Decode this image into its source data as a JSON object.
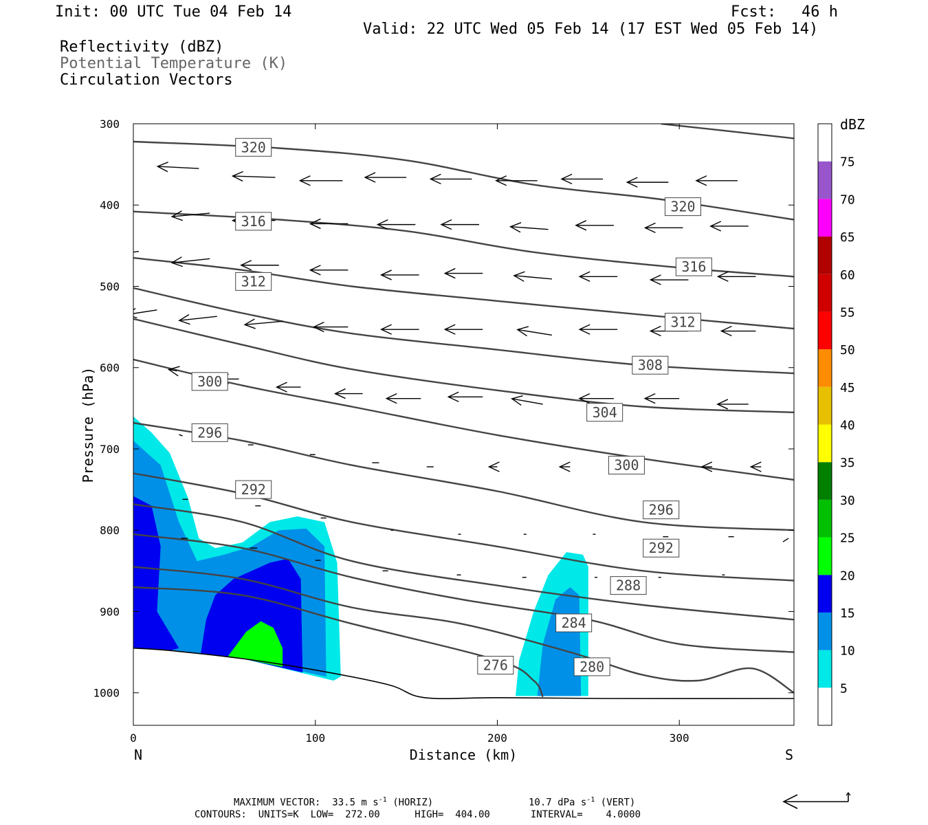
{
  "header": {
    "init": "Init: 00 UTC Tue 04 Feb 14",
    "fcst_label": "Fcst:",
    "fcst_value": "46 h",
    "valid": "Valid: 22 UTC Wed 05 Feb 14 (17 EST Wed 05 Feb 14)",
    "field1": "Reflectivity (dBZ)",
    "field2": "Potential Temperature (K)",
    "field3": "Circulation Vectors"
  },
  "footer": {
    "line1_a": "MAXIMUM VECTOR:  33.5 m s",
    "line1_sup1": "-1",
    "line1_b": " (HORIZ)",
    "line1_c": "10.7 dPa s",
    "line1_sup2": "-1",
    "line1_d": " (VERT)",
    "line2": "CONTOURS:  UNITS=K  LOW=  272.00      HIGH=  404.00       INTERVAL=    4.0000"
  },
  "chart_data": {
    "type": "contour",
    "xlabel": "Distance (km)",
    "ylabel": "Pressure (hPa)",
    "xlim": [
      0,
      363
    ],
    "ylim": [
      1040,
      300
    ],
    "x_ticks": [
      0,
      100,
      200,
      300
    ],
    "y_ticks": [
      300,
      400,
      500,
      600,
      700,
      800,
      900,
      1000
    ],
    "x_end_labels": {
      "left": "N",
      "right": "S"
    },
    "colorbar": {
      "title": "dBZ",
      "levels": [
        5,
        10,
        15,
        20,
        25,
        30,
        35,
        40,
        45,
        50,
        55,
        60,
        65,
        70,
        75
      ],
      "colors": [
        "#ffffff",
        "#00e8e8",
        "#0090e8",
        "#0000f0",
        "#00ff00",
        "#00c000",
        "#008000",
        "#ffff00",
        "#e8c000",
        "#ff8c00",
        "#ff0000",
        "#d00000",
        "#b00000",
        "#ff00ff",
        "#9955cc",
        "#ffffff"
      ]
    },
    "surface": [
      [
        0,
        945
      ],
      [
        20,
        948
      ],
      [
        60,
        958
      ],
      [
        100,
        972
      ],
      [
        140,
        990
      ],
      [
        160,
        1006
      ],
      [
        200,
        1006
      ],
      [
        260,
        1007
      ],
      [
        363,
        1007
      ]
    ],
    "reflectivity": [
      {
        "dbz": 5,
        "polygon": [
          [
            0,
            660
          ],
          [
            10,
            680
          ],
          [
            20,
            705
          ],
          [
            30,
            760
          ],
          [
            36,
            810
          ],
          [
            45,
            822
          ],
          [
            60,
            815
          ],
          [
            75,
            790
          ],
          [
            90,
            783
          ],
          [
            105,
            790
          ],
          [
            112,
            840
          ],
          [
            114,
            980
          ],
          [
            110,
            985
          ],
          [
            60,
            958
          ],
          [
            20,
            948
          ],
          [
            0,
            945
          ]
        ]
      },
      {
        "dbz": 10,
        "polygon": [
          [
            0,
            690
          ],
          [
            15,
            720
          ],
          [
            25,
            790
          ],
          [
            35,
            838
          ],
          [
            50,
            830
          ],
          [
            65,
            820
          ],
          [
            80,
            800
          ],
          [
            95,
            798
          ],
          [
            105,
            820
          ],
          [
            106,
            980
          ],
          [
            60,
            958
          ],
          [
            20,
            948
          ],
          [
            0,
            945
          ]
        ]
      },
      {
        "dbz": 15,
        "polygon": [
          [
            0,
            758
          ],
          [
            10,
            770
          ],
          [
            15,
            820
          ],
          [
            13,
            900
          ],
          [
            25,
            945
          ],
          [
            20,
            948
          ],
          [
            0,
            945
          ]
        ]
      },
      {
        "dbz": 15,
        "polygon": [
          [
            45,
            880
          ],
          [
            55,
            860
          ],
          [
            75,
            840
          ],
          [
            85,
            835
          ],
          [
            92,
            860
          ],
          [
            93,
            975
          ],
          [
            60,
            958
          ],
          [
            37,
            952
          ],
          [
            40,
            910
          ]
        ]
      },
      {
        "dbz": 20,
        "polygon": [
          [
            52,
            955
          ],
          [
            62,
            925
          ],
          [
            70,
            912
          ],
          [
            77,
            920
          ],
          [
            82,
            945
          ],
          [
            82,
            968
          ],
          [
            60,
            958
          ]
        ]
      },
      {
        "dbz": 5,
        "polygon": [
          [
            210,
            1004
          ],
          [
            212,
            960
          ],
          [
            220,
            900
          ],
          [
            228,
            855
          ],
          [
            238,
            827
          ],
          [
            247,
            830
          ],
          [
            250,
            845
          ],
          [
            250,
            1004
          ]
        ]
      },
      {
        "dbz": 10,
        "polygon": [
          [
            222,
            1004
          ],
          [
            225,
            940
          ],
          [
            232,
            885
          ],
          [
            240,
            870
          ],
          [
            245,
            880
          ],
          [
            246,
            1004
          ]
        ]
      }
    ],
    "theta_contours": [
      {
        "k": 320,
        "points": [
          [
            0,
            322
          ],
          [
            80,
            330
          ],
          [
            150,
            345
          ],
          [
            220,
            375
          ],
          [
            290,
            393
          ],
          [
            363,
            418
          ]
        ]
      },
      {
        "k": 320,
        "points": [
          [
            290,
            300
          ],
          [
            363,
            318
          ]
        ]
      },
      {
        "k": 316,
        "points": [
          [
            0,
            408
          ],
          [
            80,
            418
          ],
          [
            150,
            432
          ],
          [
            220,
            458
          ],
          [
            300,
            477
          ],
          [
            363,
            488
          ]
        ]
      },
      {
        "k": 312,
        "points": [
          [
            0,
            465
          ],
          [
            60,
            480
          ],
          [
            120,
            500
          ],
          [
            200,
            518
          ],
          [
            280,
            535
          ],
          [
            363,
            552
          ]
        ]
      },
      {
        "k": 308,
        "points": [
          [
            0,
            502
          ],
          [
            60,
            533
          ],
          [
            120,
            558
          ],
          [
            200,
            578
          ],
          [
            280,
            597
          ],
          [
            363,
            607
          ]
        ]
      },
      {
        "k": 304,
        "points": [
          [
            0,
            540
          ],
          [
            60,
            572
          ],
          [
            120,
            602
          ],
          [
            200,
            628
          ],
          [
            280,
            648
          ],
          [
            363,
            655
          ]
        ]
      },
      {
        "k": 300,
        "points": [
          [
            0,
            590
          ],
          [
            60,
            622
          ],
          [
            120,
            648
          ],
          [
            200,
            683
          ],
          [
            280,
            712
          ],
          [
            363,
            738
          ]
        ]
      },
      {
        "k": 296,
        "points": [
          [
            0,
            668
          ],
          [
            60,
            690
          ],
          [
            120,
            720
          ],
          [
            200,
            752
          ],
          [
            280,
            790
          ],
          [
            363,
            800
          ]
        ]
      },
      {
        "k": 292,
        "points": [
          [
            0,
            730
          ],
          [
            60,
            755
          ],
          [
            120,
            790
          ],
          [
            200,
            820
          ],
          [
            280,
            850
          ],
          [
            363,
            862
          ]
        ]
      },
      {
        "k": 288,
        "points": [
          [
            0,
            768
          ],
          [
            60,
            790
          ],
          [
            120,
            838
          ],
          [
            200,
            868
          ],
          [
            280,
            892
          ],
          [
            363,
            910
          ]
        ]
      },
      {
        "k": 284,
        "points": [
          [
            0,
            805
          ],
          [
            60,
            822
          ],
          [
            120,
            858
          ],
          [
            180,
            885
          ],
          [
            250,
            910
          ],
          [
            300,
            940
          ],
          [
            363,
            950
          ]
        ]
      },
      {
        "k": 280,
        "points": [
          [
            0,
            845
          ],
          [
            60,
            860
          ],
          [
            120,
            895
          ],
          [
            180,
            915
          ],
          [
            240,
            950
          ],
          [
            280,
            978
          ],
          [
            310,
            985
          ],
          [
            340,
            970
          ],
          [
            363,
            1000
          ]
        ]
      },
      {
        "k": 276,
        "points": [
          [
            0,
            870
          ],
          [
            60,
            880
          ],
          [
            120,
            915
          ],
          [
            200,
            960
          ],
          [
            220,
            985
          ],
          [
            225,
            1005
          ]
        ]
      }
    ],
    "contour_labels": [
      {
        "text": "320",
        "x": 66,
        "p": 329
      },
      {
        "text": "320",
        "x": 302,
        "p": 402
      },
      {
        "text": "316",
        "x": 66,
        "p": 420
      },
      {
        "text": "316",
        "x": 308,
        "p": 476
      },
      {
        "text": "312",
        "x": 66,
        "p": 494
      },
      {
        "text": "312",
        "x": 302,
        "p": 544
      },
      {
        "text": "308",
        "x": 284,
        "p": 597
      },
      {
        "text": "300",
        "x": 42,
        "p": 617
      },
      {
        "text": "304",
        "x": 259,
        "p": 655
      },
      {
        "text": "296",
        "x": 42,
        "p": 680
      },
      {
        "text": "300",
        "x": 271,
        "p": 720
      },
      {
        "text": "292",
        "x": 66,
        "p": 750
      },
      {
        "text": "296",
        "x": 290,
        "p": 775
      },
      {
        "text": "292",
        "x": 290,
        "p": 822
      },
      {
        "text": "288",
        "x": 272,
        "p": 868
      },
      {
        "text": "284",
        "x": 242,
        "p": 914
      },
      {
        "text": "276",
        "x": 199,
        "p": 966
      },
      {
        "text": "280",
        "x": 252,
        "p": 968
      }
    ],
    "vectors": [
      {
        "x": 0,
        "p": 348,
        "dx": -60,
        "dp": -2
      },
      {
        "x": 36,
        "p": 355,
        "dx": -60,
        "dp": -3
      },
      {
        "x": 78,
        "p": 366,
        "dx": -62,
        "dp": -2
      },
      {
        "x": 115,
        "p": 370,
        "dx": -62,
        "dp": 0
      },
      {
        "x": 150,
        "p": 366,
        "dx": -60,
        "dp": 0
      },
      {
        "x": 186,
        "p": 368,
        "dx": -60,
        "dp": 0
      },
      {
        "x": 222,
        "p": 370,
        "dx": -60,
        "dp": 0
      },
      {
        "x": 258,
        "p": 368,
        "dx": -60,
        "dp": 0
      },
      {
        "x": 294,
        "p": 372,
        "dx": -60,
        "dp": 0
      },
      {
        "x": 332,
        "p": 370,
        "dx": -60,
        "dp": 0
      },
      {
        "x": 0,
        "p": 400,
        "dx": -60,
        "dp": 7
      },
      {
        "x": 42,
        "p": 410,
        "dx": -55,
        "dp": 5
      },
      {
        "x": 78,
        "p": 419,
        "dx": -62,
        "dp": 0
      },
      {
        "x": 118,
        "p": 423,
        "dx": -55,
        "dp": 0
      },
      {
        "x": 155,
        "p": 424,
        "dx": -55,
        "dp": 0
      },
      {
        "x": 190,
        "p": 424,
        "dx": -55,
        "dp": 0
      },
      {
        "x": 228,
        "p": 430,
        "dx": -55,
        "dp": -4
      },
      {
        "x": 264,
        "p": 425,
        "dx": -55,
        "dp": 0
      },
      {
        "x": 302,
        "p": 428,
        "dx": -55,
        "dp": 0
      },
      {
        "x": 338,
        "p": 426,
        "dx": -55,
        "dp": 0
      },
      {
        "x": 3,
        "p": 457,
        "dx": -60,
        "dp": 8
      },
      {
        "x": 42,
        "p": 466,
        "dx": -55,
        "dp": 6
      },
      {
        "x": 80,
        "p": 474,
        "dx": -55,
        "dp": 0
      },
      {
        "x": 118,
        "p": 480,
        "dx": -55,
        "dp": 0
      },
      {
        "x": 157,
        "p": 486,
        "dx": -55,
        "dp": 0
      },
      {
        "x": 192,
        "p": 484,
        "dx": -55,
        "dp": 0
      },
      {
        "x": 230,
        "p": 491,
        "dx": -55,
        "dp": -5
      },
      {
        "x": 266,
        "p": 488,
        "dx": -55,
        "dp": 0
      },
      {
        "x": 305,
        "p": 492,
        "dx": -55,
        "dp": 0
      },
      {
        "x": 342,
        "p": 488,
        "dx": -55,
        "dp": 0
      },
      {
        "x": 13,
        "p": 529,
        "dx": -45,
        "dp": 7
      },
      {
        "x": 46,
        "p": 537,
        "dx": -55,
        "dp": 6
      },
      {
        "x": 82,
        "p": 543,
        "dx": -55,
        "dp": 5
      },
      {
        "x": 118,
        "p": 550,
        "dx": -50,
        "dp": 0
      },
      {
        "x": 157,
        "p": 553,
        "dx": -55,
        "dp": 0
      },
      {
        "x": 192,
        "p": 553,
        "dx": -55,
        "dp": 0
      },
      {
        "x": 230,
        "p": 560,
        "dx": -50,
        "dp": -8
      },
      {
        "x": 266,
        "p": 553,
        "dx": -55,
        "dp": 0
      },
      {
        "x": 305,
        "p": 555,
        "dx": -55,
        "dp": 0
      },
      {
        "x": 342,
        "p": 555,
        "dx": -50,
        "dp": 0
      },
      {
        "x": 24,
        "p": 604,
        "dx": -12,
        "dp": -2
      },
      {
        "x": 58,
        "p": 614,
        "dx": -30,
        "dp": 0
      },
      {
        "x": 92,
        "p": 624,
        "dx": -35,
        "dp": 0
      },
      {
        "x": 126,
        "p": 632,
        "dx": -40,
        "dp": 0
      },
      {
        "x": 158,
        "p": 638,
        "dx": -50,
        "dp": 0
      },
      {
        "x": 192,
        "p": 636,
        "dx": -50,
        "dp": 0
      },
      {
        "x": 225,
        "p": 645,
        "dx": -45,
        "dp": -8
      },
      {
        "x": 264,
        "p": 638,
        "dx": -50,
        "dp": 0
      },
      {
        "x": 300,
        "p": 638,
        "dx": -50,
        "dp": 0
      },
      {
        "x": 338,
        "p": 645,
        "dx": -45,
        "dp": 0
      },
      {
        "x": 27,
        "p": 684,
        "dx": -5,
        "dp": -2
      },
      {
        "x": 66,
        "p": 695,
        "dx": -8,
        "dp": 0
      },
      {
        "x": 100,
        "p": 707,
        "dx": -8,
        "dp": 0
      },
      {
        "x": 135,
        "p": 717,
        "dx": -10,
        "dp": 0
      },
      {
        "x": 165,
        "p": 722,
        "dx": -10,
        "dp": 0
      },
      {
        "x": 200,
        "p": 722,
        "dx": -12,
        "dp": 0
      },
      {
        "x": 240,
        "p": 722,
        "dx": -15,
        "dp": 0
      },
      {
        "x": 278,
        "p": 722,
        "dx": -15,
        "dp": 0
      },
      {
        "x": 318,
        "p": 722,
        "dx": -15,
        "dp": 0
      },
      {
        "x": 345,
        "p": 722,
        "dx": -15,
        "dp": 0
      },
      {
        "x": 30,
        "p": 762,
        "dx": -8,
        "dp": 0
      },
      {
        "x": 70,
        "p": 770,
        "dx": -8,
        "dp": 0
      },
      {
        "x": 106,
        "p": 785,
        "dx": -8,
        "dp": 0
      },
      {
        "x": 143,
        "p": 800,
        "dx": -4,
        "dp": 0
      },
      {
        "x": 180,
        "p": 805,
        "dx": -4,
        "dp": 0
      },
      {
        "x": 216,
        "p": 805,
        "dx": -4,
        "dp": 0
      },
      {
        "x": 254,
        "p": 805,
        "dx": -4,
        "dp": 0
      },
      {
        "x": 294,
        "p": 808,
        "dx": -8,
        "dp": 0
      },
      {
        "x": 330,
        "p": 808,
        "dx": -8,
        "dp": 0
      },
      {
        "x": 360,
        "p": 810,
        "dx": -8,
        "dp": 5
      },
      {
        "x": 30,
        "p": 810,
        "dx": -10,
        "dp": 0
      },
      {
        "x": 68,
        "p": 822,
        "dx": -10,
        "dp": 0
      },
      {
        "x": 103,
        "p": 837,
        "dx": -8,
        "dp": 0
      },
      {
        "x": 140,
        "p": 850,
        "dx": -8,
        "dp": 0
      },
      {
        "x": 180,
        "p": 855,
        "dx": -6,
        "dp": 0
      },
      {
        "x": 216,
        "p": 858,
        "dx": -6,
        "dp": 0
      },
      {
        "x": 255,
        "p": 858,
        "dx": -4,
        "dp": 0
      },
      {
        "x": 290,
        "p": 858,
        "dx": -4,
        "dp": 0
      },
      {
        "x": 325,
        "p": 855,
        "dx": -4,
        "dp": 0
      }
    ]
  }
}
